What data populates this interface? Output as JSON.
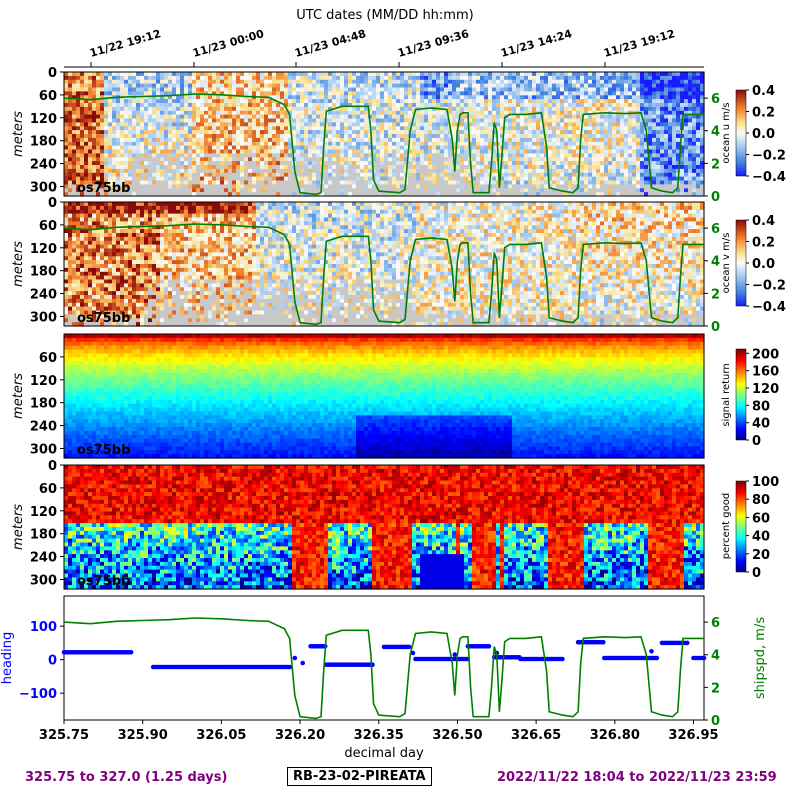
{
  "top_axis_title": "UTC dates (MM/DD hh:mm)",
  "top_ticks": [
    "11/22 19:12",
    "11/23 00:00",
    "11/23 04:48",
    "11/23 09:36",
    "11/23 14:24",
    "11/23 19:12"
  ],
  "footer": {
    "left": "325.75 to 327.0 (1.25 days)",
    "center": "RB-23-02-PIREATA",
    "right": "2022/11/22 18:04 to 2022/11/23 23:59"
  },
  "colors": {
    "shipspd": "#008000",
    "heading": "#0000ff",
    "footer_text": "#800080",
    "nodata": "#c8c8c8"
  },
  "chart_data": [
    {
      "type": "heatmap",
      "panel": "ocean_u",
      "instrument_label": "os75bb",
      "ylabel": "meters",
      "y_ticks": [
        0,
        60,
        120,
        180,
        240,
        300
      ],
      "ylim": [
        325,
        0
      ],
      "x_range": [
        325.75,
        327.0
      ],
      "colorbar": {
        "label": "ocean u m/s",
        "cmap": "RdBu_r",
        "range": [
          -0.4,
          0.4
        ],
        "ticks": [
          "0.4",
          "0.2",
          "0.0",
          "−0.2",
          "−0.4"
        ]
      },
      "right_axis": {
        "ticks": [
          "6",
          "4",
          "2",
          "0"
        ],
        "values": [
          6,
          4,
          2,
          0
        ],
        "range": [
          0,
          7.6
        ]
      },
      "overlay_series": "shipspd"
    },
    {
      "type": "heatmap",
      "panel": "ocean_v",
      "instrument_label": "os75bb",
      "ylabel": "meters",
      "y_ticks": [
        0,
        60,
        120,
        180,
        240,
        300
      ],
      "ylim": [
        325,
        0
      ],
      "x_range": [
        325.75,
        327.0
      ],
      "colorbar": {
        "label": "ocean v m/s",
        "cmap": "RdBu_r",
        "range": [
          -0.4,
          0.4
        ],
        "ticks": [
          "0.4",
          "0.2",
          "0.0",
          "−0.2",
          "−0.4"
        ]
      },
      "right_axis": {
        "ticks": [
          "6",
          "4",
          "2",
          "0"
        ],
        "values": [
          6,
          4,
          2,
          0
        ],
        "range": [
          0,
          7.6
        ]
      },
      "overlay_series": "shipspd"
    },
    {
      "type": "heatmap",
      "panel": "signal_return",
      "instrument_label": "os75bb",
      "ylabel": "meters",
      "y_ticks": [
        60,
        120,
        180,
        240,
        300
      ],
      "ylim": [
        325,
        0
      ],
      "x_range": [
        325.75,
        327.0
      ],
      "colorbar": {
        "label": "signal return",
        "cmap": "jet",
        "range": [
          0,
          210
        ],
        "ticks": [
          "200",
          "160",
          "120",
          "80",
          "40",
          "0"
        ]
      }
    },
    {
      "type": "heatmap",
      "panel": "percent_good",
      "instrument_label": "os75bb",
      "ylabel": "meters",
      "y_ticks": [
        0,
        60,
        120,
        180,
        240,
        300
      ],
      "ylim": [
        325,
        0
      ],
      "x_range": [
        325.75,
        327.0
      ],
      "colorbar": {
        "label": "percent good",
        "cmap": "jet",
        "range": [
          0,
          100
        ],
        "ticks": [
          "100",
          "80",
          "60",
          "40",
          "20",
          "0"
        ]
      }
    },
    {
      "type": "scatter",
      "panel": "heading_shipspd",
      "xlabel": "decimal day",
      "x_ticks": [
        "325.75",
        "325.90",
        "326.05",
        "326.20",
        "326.35",
        "326.50",
        "326.65",
        "326.80",
        "326.95"
      ],
      "x_tick_values": [
        325.75,
        325.9,
        326.05,
        326.2,
        326.35,
        326.5,
        326.65,
        326.8,
        326.95
      ],
      "xlim": [
        325.75,
        326.97
      ],
      "ylabel_left": "heading",
      "ylabel_right": "shipspd, m/s",
      "left_ticks": [
        "100",
        "0",
        "−100"
      ],
      "left_tick_values": [
        100,
        0,
        -100
      ],
      "left_ylim": [
        -180,
        190
      ],
      "right_ticks": [
        "6",
        "4",
        "2",
        "0"
      ],
      "right_tick_values": [
        6,
        4,
        2,
        0
      ],
      "right_ylim": [
        0,
        7.6
      ],
      "series": [
        {
          "name": "heading",
          "color": "#0000ff",
          "segments": [
            {
              "x0": 325.75,
              "x1": 325.88,
              "y": 22
            },
            {
              "x0": 325.92,
              "x1": 326.18,
              "y": -22
            },
            {
              "x0": 326.22,
              "x1": 326.25,
              "y": 40
            },
            {
              "x0": 326.25,
              "x1": 326.34,
              "y": -15
            },
            {
              "x0": 326.36,
              "x1": 326.41,
              "y": 38
            },
            {
              "x0": 326.42,
              "x1": 326.52,
              "y": 2
            },
            {
              "x0": 326.52,
              "x1": 326.56,
              "y": 40
            },
            {
              "x0": 326.57,
              "x1": 326.62,
              "y": 7
            },
            {
              "x0": 326.62,
              "x1": 326.7,
              "y": 2
            },
            {
              "x0": 326.73,
              "x1": 326.78,
              "y": 52
            },
            {
              "x0": 326.78,
              "x1": 326.88,
              "y": 5
            },
            {
              "x0": 326.89,
              "x1": 326.94,
              "y": 50
            },
            {
              "x0": 326.95,
              "x1": 326.97,
              "y": 5
            }
          ]
        },
        {
          "name": "shipspd",
          "color": "#008000",
          "points": [
            [
              325.75,
              6.0
            ],
            [
              325.8,
              5.9
            ],
            [
              325.85,
              6.05
            ],
            [
              325.9,
              6.1
            ],
            [
              325.95,
              6.15
            ],
            [
              326.0,
              6.25
            ],
            [
              326.05,
              6.2
            ],
            [
              326.1,
              6.1
            ],
            [
              326.14,
              6.05
            ],
            [
              326.17,
              5.6
            ],
            [
              326.18,
              5.0
            ],
            [
              326.19,
              1.5
            ],
            [
              326.2,
              0.2
            ],
            [
              326.23,
              0.1
            ],
            [
              326.24,
              0.2
            ],
            [
              326.245,
              3.0
            ],
            [
              326.25,
              5.2
            ],
            [
              326.28,
              5.5
            ],
            [
              326.33,
              5.5
            ],
            [
              326.335,
              4.0
            ],
            [
              326.34,
              1.0
            ],
            [
              326.35,
              0.3
            ],
            [
              326.39,
              0.2
            ],
            [
              326.4,
              0.4
            ],
            [
              326.41,
              4.0
            ],
            [
              326.42,
              5.3
            ],
            [
              326.45,
              5.4
            ],
            [
              326.48,
              5.3
            ],
            [
              326.49,
              3.5
            ],
            [
              326.495,
              1.5
            ],
            [
              326.5,
              4.0
            ],
            [
              326.505,
              5.0
            ],
            [
              326.51,
              5.1
            ],
            [
              326.52,
              5.1
            ],
            [
              326.525,
              2.0
            ],
            [
              326.53,
              0.2
            ],
            [
              326.55,
              0.2
            ],
            [
              326.56,
              0.2
            ],
            [
              326.565,
              2.0
            ],
            [
              326.57,
              4.5
            ],
            [
              326.575,
              4.0
            ],
            [
              326.58,
              0.5
            ],
            [
              326.585,
              2.5
            ],
            [
              326.59,
              4.8
            ],
            [
              326.6,
              5.0
            ],
            [
              326.63,
              5.0
            ],
            [
              326.66,
              5.1
            ],
            [
              326.67,
              3.0
            ],
            [
              326.675,
              0.5
            ],
            [
              326.7,
              0.3
            ],
            [
              326.72,
              0.2
            ],
            [
              326.73,
              0.5
            ],
            [
              326.735,
              3.5
            ],
            [
              326.74,
              5.0
            ],
            [
              326.78,
              5.1
            ],
            [
              326.82,
              5.05
            ],
            [
              326.85,
              5.1
            ],
            [
              326.86,
              4.0
            ],
            [
              326.87,
              0.5
            ],
            [
              326.89,
              0.3
            ],
            [
              326.91,
              0.2
            ],
            [
              326.92,
              0.5
            ],
            [
              326.925,
              3.0
            ],
            [
              326.93,
              5.0
            ],
            [
              326.97,
              5.0
            ]
          ]
        }
      ]
    }
  ]
}
